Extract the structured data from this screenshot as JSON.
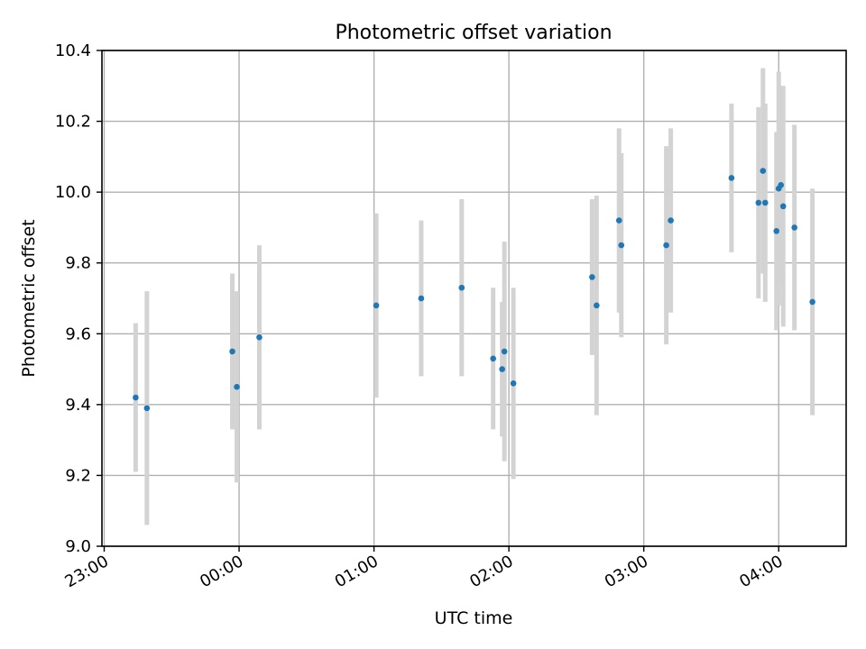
{
  "chart_data": {
    "type": "scatter",
    "title": "Photometric offset variation",
    "xlabel": "UTC time",
    "ylabel": "Photometric offset",
    "x_unit": "UTC time of day, continuing past midnight (e.g. 24:30 = 00:30)",
    "xlim": [
      "22:59",
      "28:30"
    ],
    "ylim": [
      9.0,
      10.4
    ],
    "x_ticks": [
      "23:00",
      "24:00",
      "25:00",
      "26:00",
      "27:00",
      "28:00"
    ],
    "x_tick_labels": [
      "23:00",
      "00:00",
      "01:00",
      "02:00",
      "03:00",
      "04:00"
    ],
    "y_ticks": [
      9.0,
      9.2,
      9.4,
      9.6,
      9.8,
      10.0,
      10.2,
      10.4
    ],
    "y_tick_labels": [
      "9.0",
      "9.2",
      "9.4",
      "9.6",
      "9.8",
      "10.0",
      "10.2",
      "10.4"
    ],
    "grid": true,
    "colors": {
      "point": "#1f77b4",
      "errorbar": "#d3d3d3",
      "grid": "#b0b0b0"
    },
    "points": [
      {
        "x": "23:14",
        "y": 9.42,
        "err": 0.21
      },
      {
        "x": "23:19",
        "y": 9.39,
        "err": 0.33
      },
      {
        "x": "23:57",
        "y": 9.55,
        "err": 0.22
      },
      {
        "x": "23:59",
        "y": 9.45,
        "err": 0.27
      },
      {
        "x": "24:09",
        "y": 9.59,
        "err": 0.26
      },
      {
        "x": "25:01",
        "y": 9.68,
        "err": 0.26
      },
      {
        "x": "25:21",
        "y": 9.7,
        "err": 0.22
      },
      {
        "x": "25:39",
        "y": 9.73,
        "err": 0.25
      },
      {
        "x": "25:53",
        "y": 9.53,
        "err": 0.2
      },
      {
        "x": "25:57",
        "y": 9.5,
        "err": 0.19
      },
      {
        "x": "25:58",
        "y": 9.55,
        "err": 0.31
      },
      {
        "x": "26:02",
        "y": 9.46,
        "err": 0.27
      },
      {
        "x": "26:37",
        "y": 9.76,
        "err": 0.22
      },
      {
        "x": "26:39",
        "y": 9.68,
        "err": 0.31
      },
      {
        "x": "26:49",
        "y": 9.92,
        "err": 0.26
      },
      {
        "x": "26:50",
        "y": 9.85,
        "err": 0.26
      },
      {
        "x": "27:10",
        "y": 9.85,
        "err": 0.28
      },
      {
        "x": "27:12",
        "y": 9.92,
        "err": 0.26
      },
      {
        "x": "27:39",
        "y": 10.04,
        "err": 0.21
      },
      {
        "x": "27:51",
        "y": 9.97,
        "err": 0.27
      },
      {
        "x": "27:53",
        "y": 10.06,
        "err": 0.29
      },
      {
        "x": "27:54",
        "y": 9.97,
        "err": 0.28
      },
      {
        "x": "27:59",
        "y": 9.89,
        "err": 0.28
      },
      {
        "x": "28:00",
        "y": 10.01,
        "err": 0.33
      },
      {
        "x": "28:01",
        "y": 10.02,
        "err": 0.28
      },
      {
        "x": "28:02",
        "y": 9.96,
        "err": 0.34
      },
      {
        "x": "28:07",
        "y": 9.9,
        "err": 0.29
      },
      {
        "x": "28:15",
        "y": 9.69,
        "err": 0.32
      }
    ]
  }
}
